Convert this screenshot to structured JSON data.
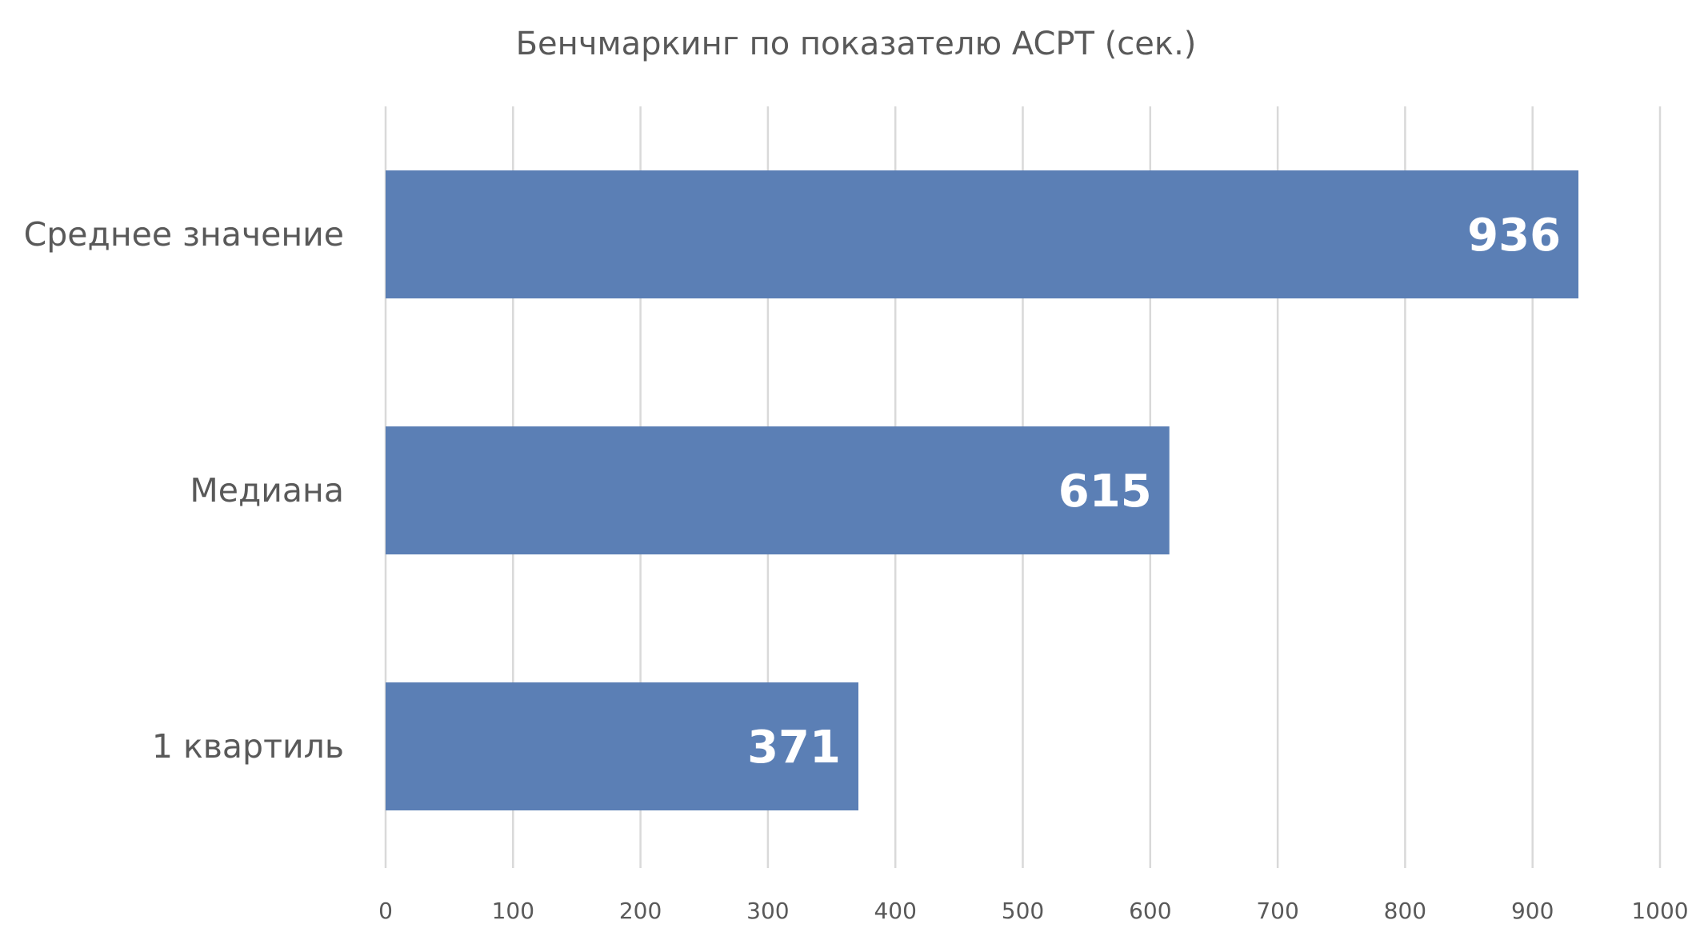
{
  "chart_data": {
    "type": "bar",
    "orientation": "horizontal",
    "title": "Бенчмаркинг по показателю ACPT (сек.)",
    "categories": [
      "Среднее значение",
      "Медиана",
      "1 квартиль"
    ],
    "values": [
      936,
      615,
      371
    ],
    "data_labels": [
      "936",
      "615",
      "371"
    ],
    "xlim": [
      0,
      1000
    ],
    "x_ticks": [
      0,
      100,
      200,
      300,
      400,
      500,
      600,
      700,
      800,
      900,
      1000
    ],
    "x_tick_labels": [
      "0",
      "100",
      "200",
      "300",
      "400",
      "500",
      "600",
      "700",
      "800",
      "900",
      "1000"
    ],
    "xlabel": "",
    "ylabel": "",
    "grid": "vertical",
    "legend": "none",
    "colors": {
      "bar": "#5b7fb5",
      "bar_label": "#ffffff",
      "text": "#595959",
      "grid": "#d9d9d9",
      "background": "#ffffff"
    }
  }
}
